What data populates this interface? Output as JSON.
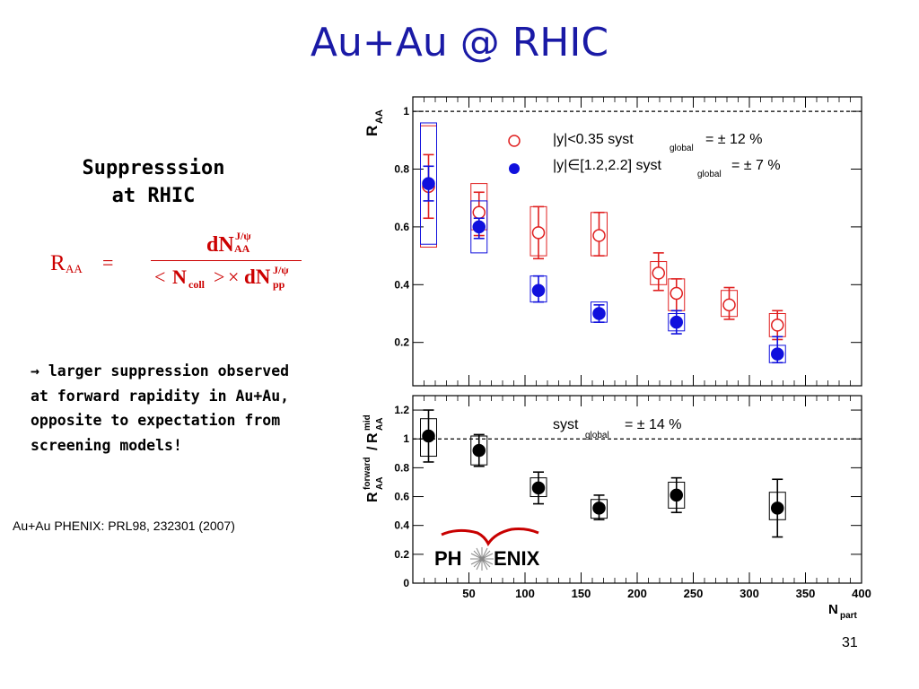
{
  "slide": {
    "title": "Au+Au @ RHIC",
    "heading_line1": "Suppresssion",
    "heading_line2": "at RHIC",
    "bullet_arrow": "→",
    "bullet_text": "larger  suppression observed at forward rapidity in Au+Au, opposite to expectation from screening models!",
    "reference": "Au+Au PHENIX: PRL98, 232301 (2007)",
    "page_number": "31",
    "logo_text_left": "PH",
    "logo_text_right": "ENIX"
  },
  "formula": {
    "lhs": "R",
    "lhs_sub": "AA",
    "eq": "=",
    "num_main": "dN",
    "num_sup": "J/ψ",
    "num_sub": "AA",
    "den_lt": "<",
    "den_n": "N",
    "den_n_sub": "coll",
    "den_gt": ">",
    "den_times": "×",
    "den_dn": "dN",
    "den_sup": "J/ψ",
    "den_sub": "pp"
  },
  "colors": {
    "title": "#1a1aa6",
    "formula": "#cc0000",
    "midrapidity": "#e02020",
    "forward": "#1010dd",
    "ratio": "#000000"
  },
  "chart_data": [
    {
      "type": "scatter",
      "ylabel_main": "R",
      "ylabel_sub": "AA",
      "xlim": [
        0,
        400
      ],
      "ylim": [
        0.05,
        1.05
      ],
      "yticks": [
        0.2,
        0.4,
        0.6,
        0.8,
        1
      ],
      "yticklabels": [
        "0.2",
        "0.4",
        "0.6",
        "0.8",
        "1"
      ],
      "reference_line": 1,
      "legend_placement": "top",
      "series": [
        {
          "name": "|y|<0.35",
          "legend_text": "|y|<0.35   syst",
          "legend_syst_sub": "global",
          "legend_syst_val": "= ± 12 %",
          "marker": "open-circle",
          "color": "#e02020",
          "x": [
            14,
            59,
            112,
            166,
            219,
            235,
            282,
            325
          ],
          "y": [
            0.74,
            0.65,
            0.58,
            0.57,
            0.44,
            0.37,
            0.33,
            0.26
          ],
          "stat_lo": [
            0.63,
            0.57,
            0.49,
            0.5,
            0.38,
            0.31,
            0.28,
            0.21
          ],
          "stat_hi": [
            0.85,
            0.72,
            0.67,
            0.65,
            0.51,
            0.42,
            0.39,
            0.31
          ],
          "sys_lo": [
            0.53,
            0.59,
            0.5,
            0.5,
            0.4,
            0.31,
            0.29,
            0.22
          ],
          "sys_hi": [
            0.95,
            0.75,
            0.67,
            0.65,
            0.48,
            0.42,
            0.38,
            0.3
          ]
        },
        {
          "name": "|y|∈[1.2,2.2]",
          "legend_text": "|y|∈[1.2,2.2]   syst",
          "legend_syst_sub": "global",
          "legend_syst_val": "= ± 7 %",
          "marker": "filled-circle",
          "color": "#1010dd",
          "x": [
            14,
            59,
            112,
            166,
            235,
            325
          ],
          "y": [
            0.75,
            0.6,
            0.38,
            0.3,
            0.27,
            0.16
          ],
          "stat_lo": [
            0.69,
            0.56,
            0.34,
            0.27,
            0.23,
            0.13
          ],
          "stat_hi": [
            0.81,
            0.63,
            0.43,
            0.33,
            0.31,
            0.22
          ],
          "sys_lo": [
            0.54,
            0.51,
            0.34,
            0.27,
            0.24,
            0.13
          ],
          "sys_hi": [
            0.96,
            0.69,
            0.43,
            0.34,
            0.3,
            0.19
          ]
        }
      ]
    },
    {
      "type": "scatter",
      "ylabel_main": "R",
      "ylabel_sub": "AA",
      "ylabel_sup": "forward",
      "ylabel_sep": "/",
      "ylabel_main2": "R",
      "ylabel_sub2": "AA",
      "ylabel_sup2": "mid",
      "xlabel_main": "N",
      "xlabel_sub": "part",
      "xlim": [
        0,
        400
      ],
      "ylim": [
        0,
        1.3
      ],
      "xticks": [
        50,
        100,
        150,
        200,
        250,
        300,
        350,
        400
      ],
      "xticklabels": [
        "50",
        "100",
        "150",
        "200",
        "250",
        "300",
        "350",
        "400"
      ],
      "yticks": [
        0,
        0.2,
        0.4,
        0.6,
        0.8,
        1,
        1.2
      ],
      "yticklabels": [
        "0",
        "0.2",
        "0.4",
        "0.6",
        "0.8",
        "1",
        "1.2"
      ],
      "reference_line": 1,
      "annotation_text": "syst",
      "annotation_sub": "global",
      "annotation_val": "= ± 14 %",
      "series": [
        {
          "marker": "filled-circle",
          "color": "#000000",
          "x": [
            14,
            59,
            112,
            166,
            235,
            325
          ],
          "y": [
            1.02,
            0.92,
            0.66,
            0.52,
            0.61,
            0.52
          ],
          "stat_lo": [
            0.84,
            0.81,
            0.55,
            0.44,
            0.49,
            0.32
          ],
          "stat_hi": [
            1.2,
            1.03,
            0.77,
            0.61,
            0.73,
            0.72
          ],
          "sys_lo": [
            0.88,
            0.82,
            0.6,
            0.45,
            0.52,
            0.44
          ],
          "sys_hi": [
            1.14,
            1.02,
            0.73,
            0.58,
            0.7,
            0.63
          ]
        }
      ]
    }
  ]
}
